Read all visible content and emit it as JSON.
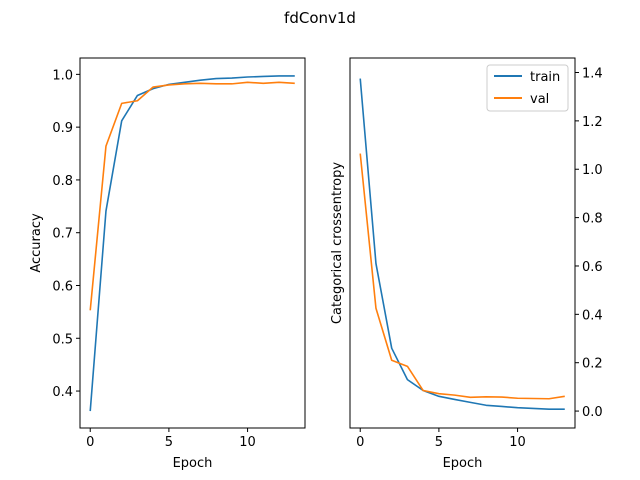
{
  "figure": {
    "suptitle": "fdConv1d"
  },
  "chart_data": [
    {
      "type": "line",
      "xlabel": "Epoch",
      "ylabel": "Accuracy",
      "xlim": [
        -0.65,
        13.65
      ],
      "ylim": [
        0.33,
        1.031
      ],
      "xticks": [
        0,
        5,
        10
      ],
      "yticks": [
        0.4,
        0.5,
        0.6,
        0.7,
        0.8,
        0.9,
        1.0
      ],
      "ytick_labels": [
        "0.4",
        "0.5",
        "0.6",
        "0.7",
        "0.8",
        "0.9",
        "1.0"
      ],
      "y_axis_side": "left",
      "grid": false,
      "x": [
        0,
        1,
        2,
        3,
        4,
        5,
        6,
        7,
        8,
        9,
        10,
        11,
        12,
        13
      ],
      "series": [
        {
          "color": "#1f77b4",
          "values": [
            0.362,
            0.741,
            0.912,
            0.96,
            0.973,
            0.981,
            0.985,
            0.989,
            0.992,
            0.993,
            0.995,
            0.996,
            0.997,
            0.997
          ]
        },
        {
          "color": "#ff7f0e",
          "values": [
            0.553,
            0.864,
            0.945,
            0.95,
            0.976,
            0.98,
            0.982,
            0.983,
            0.982,
            0.982,
            0.985,
            0.983,
            0.985,
            0.983
          ]
        }
      ]
    },
    {
      "type": "line",
      "xlabel": "Epoch",
      "ylabel": "Categorical crossentropy",
      "xlim": [
        -0.65,
        13.65
      ],
      "ylim": [
        -0.07,
        1.46
      ],
      "xticks": [
        0,
        5,
        10
      ],
      "yticks": [
        0.0,
        0.2,
        0.4,
        0.6,
        0.8,
        1.0,
        1.2,
        1.4
      ],
      "ytick_labels": [
        "0.0",
        "0.2",
        "0.4",
        "0.6",
        "0.8",
        "1.0",
        "1.2",
        "1.4"
      ],
      "y_axis_side": "right",
      "grid": false,
      "legend_position": "top-right",
      "x": [
        0,
        1,
        2,
        3,
        4,
        5,
        6,
        7,
        8,
        9,
        10,
        11,
        12,
        13
      ],
      "series": [
        {
          "name": "train",
          "color": "#1f77b4",
          "values": [
            1.375,
            0.61,
            0.26,
            0.13,
            0.085,
            0.061,
            0.048,
            0.036,
            0.024,
            0.019,
            0.014,
            0.011,
            0.008,
            0.008
          ]
        },
        {
          "name": "val",
          "color": "#ff7f0e",
          "values": [
            1.065,
            0.425,
            0.21,
            0.185,
            0.085,
            0.072,
            0.066,
            0.057,
            0.059,
            0.058,
            0.053,
            0.052,
            0.051,
            0.061
          ]
        }
      ]
    }
  ]
}
